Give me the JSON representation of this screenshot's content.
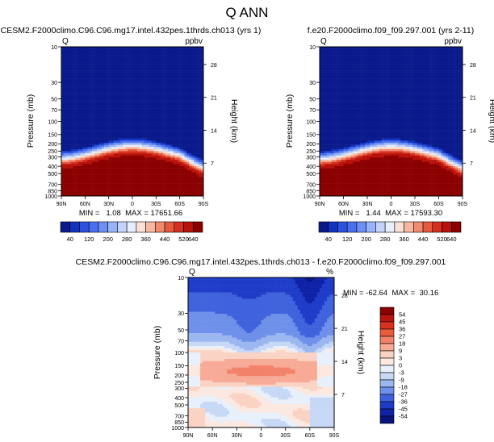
{
  "figure": {
    "title": "Q ANN"
  },
  "pressure_ticks": [
    {
      "p": 10,
      "label": "10"
    },
    {
      "p": 30,
      "label": "30"
    },
    {
      "p": 50,
      "label": "50"
    },
    {
      "p": 70,
      "label": "70"
    },
    {
      "p": 100,
      "label": "100"
    },
    {
      "p": 150,
      "label": "150"
    },
    {
      "p": 200,
      "label": "200"
    },
    {
      "p": 250,
      "label": "250"
    },
    {
      "p": 300,
      "label": "300"
    },
    {
      "p": 400,
      "label": "400"
    },
    {
      "p": 500,
      "label": "500"
    },
    {
      "p": 700,
      "label": "700"
    },
    {
      "p": 850,
      "label": "850"
    },
    {
      "p": 1000,
      "label": "1000"
    }
  ],
  "height_ticks": [
    {
      "km": 7,
      "label": "7"
    },
    {
      "km": 14,
      "label": "14"
    },
    {
      "km": 21,
      "label": "21"
    },
    {
      "km": 28,
      "label": "28"
    }
  ],
  "lat_ticks": [
    {
      "lat": 90,
      "label": "90N"
    },
    {
      "lat": 60,
      "label": "60N"
    },
    {
      "lat": 30,
      "label": "30N"
    },
    {
      "lat": 0,
      "label": "0"
    },
    {
      "lat": -30,
      "label": "30S"
    },
    {
      "lat": -60,
      "label": "60S"
    },
    {
      "lat": -90,
      "label": "90S"
    }
  ],
  "ylabel_left": "Pressure (mb)",
  "ylabel_right": "Height (km)",
  "panels": [
    {
      "title": "CESM2.F2000climo.C96.C96.mg17.intel.432pes.1thrds.ch013 (yrs 1)",
      "var": "Q",
      "units": "ppbv",
      "stats": "MIN =   1.08  MAX = 17651.66"
    },
    {
      "title": "f.e20.F2000climo.f09_f09.297.001 (yrs 2-11)",
      "var": "Q",
      "units": "ppbv",
      "stats": "MIN =   1.44  MAX = 17593.30"
    },
    {
      "title": "CESM2.F2000climo.C96.C96.mg17.intel.432pes.1thrds.ch013 - f.e20.F2000climo.f09_f09.297.001",
      "var": "Q",
      "units": "%",
      "stats": "MIN = -62.64  MAX =  30.16"
    }
  ],
  "colorbar_mean": {
    "labels": [
      "40",
      "120",
      "200",
      "280",
      "360",
      "440",
      "520",
      "640"
    ],
    "colors": [
      "#0a1a8c",
      "#1233c2",
      "#2a52e0",
      "#4a70f0",
      "#6e90f5",
      "#98b3f8",
      "#c3d3fa",
      "#e7eefc",
      "#fbe0d6",
      "#f8b8a0",
      "#f18a6e",
      "#e65a3f",
      "#d5301f",
      "#b8120a",
      "#8b0000"
    ]
  },
  "colorbar_diff": {
    "labels": [
      "54",
      "45",
      "36",
      "27",
      "18",
      "9",
      "3",
      "0",
      "-3",
      "-9",
      "-18",
      "-27",
      "-36",
      "-45",
      "-54"
    ],
    "colors": [
      "#8b0000",
      "#b8150e",
      "#d8321f",
      "#ea5a3f",
      "#f2826a",
      "#f7ab97",
      "#fad3c5",
      "#fbe8e0",
      "#e8f0fb",
      "#c7d8f6",
      "#9cb6f0",
      "#6f90ea",
      "#3f63dd",
      "#1e3cc8",
      "#0f22a8",
      "#08147e"
    ]
  },
  "chart_data": [
    {
      "type": "heatmap",
      "title": "CESM2.F2000climo.C96.C96.mg17.intel.432pes.1thrds.ch013 (yrs 1)",
      "variable": "Q",
      "units": "ppbv",
      "x": {
        "label": "",
        "range": [
          90,
          -90
        ],
        "ticks": [
          "90N",
          "60N",
          "30N",
          "0",
          "30S",
          "60S",
          "90S"
        ]
      },
      "y": {
        "label": "Pressure (mb)",
        "range": [
          1000,
          10
        ],
        "scale": "log"
      },
      "y2": {
        "label": "Height (km)",
        "ticks": [
          7,
          14,
          21,
          28
        ]
      },
      "min": 1.08,
      "max": 17651.66,
      "description": "near-uniform low values (~40 ppbv) aloft; moisture dome peaking near the equator around 400 mb, saturating above 640 ppbv below ~500 mb"
    },
    {
      "type": "heatmap",
      "title": "f.e20.F2000climo.f09_f09.297.001 (yrs 2-11)",
      "variable": "Q",
      "units": "ppbv",
      "x": {
        "label": "",
        "range": [
          90,
          -90
        ],
        "ticks": [
          "90N",
          "60N",
          "30N",
          "0",
          "30S",
          "60S",
          "90S"
        ]
      },
      "y": {
        "label": "Pressure (mb)",
        "range": [
          1000,
          10
        ],
        "scale": "log"
      },
      "y2": {
        "label": "Height (km)",
        "ticks": [
          7,
          14,
          21,
          28
        ]
      },
      "min": 1.44,
      "max": 17593.3
    },
    {
      "type": "heatmap",
      "title": "CESM2.F2000climo.C96.C96.mg17.intel.432pes.1thrds.ch013 - f.e20.F2000climo.f09_f09.297.001",
      "variable": "Q",
      "units": "%",
      "x": {
        "label": "",
        "range": [
          90,
          -90
        ],
        "ticks": [
          "90N",
          "60N",
          "30N",
          "0",
          "30S",
          "60S",
          "90S"
        ]
      },
      "y": {
        "label": "Pressure (mb)",
        "range": [
          1000,
          10
        ],
        "scale": "log"
      },
      "y2": {
        "label": "Height (km)",
        "ticks": [
          7,
          14,
          21,
          28
        ]
      },
      "min": -62.64,
      "max": 30.16,
      "levels": [
        -54,
        -45,
        -36,
        -27,
        -18,
        -9,
        -3,
        0,
        3,
        9,
        18,
        27,
        36,
        45,
        54
      ],
      "description": "strong negative (-36 to -54%) in upper stratosphere especially near 30N-0 and 60S; positive (+9 to +27%) band near 150-250 mb; small mixed differences below 300 mb"
    }
  ]
}
